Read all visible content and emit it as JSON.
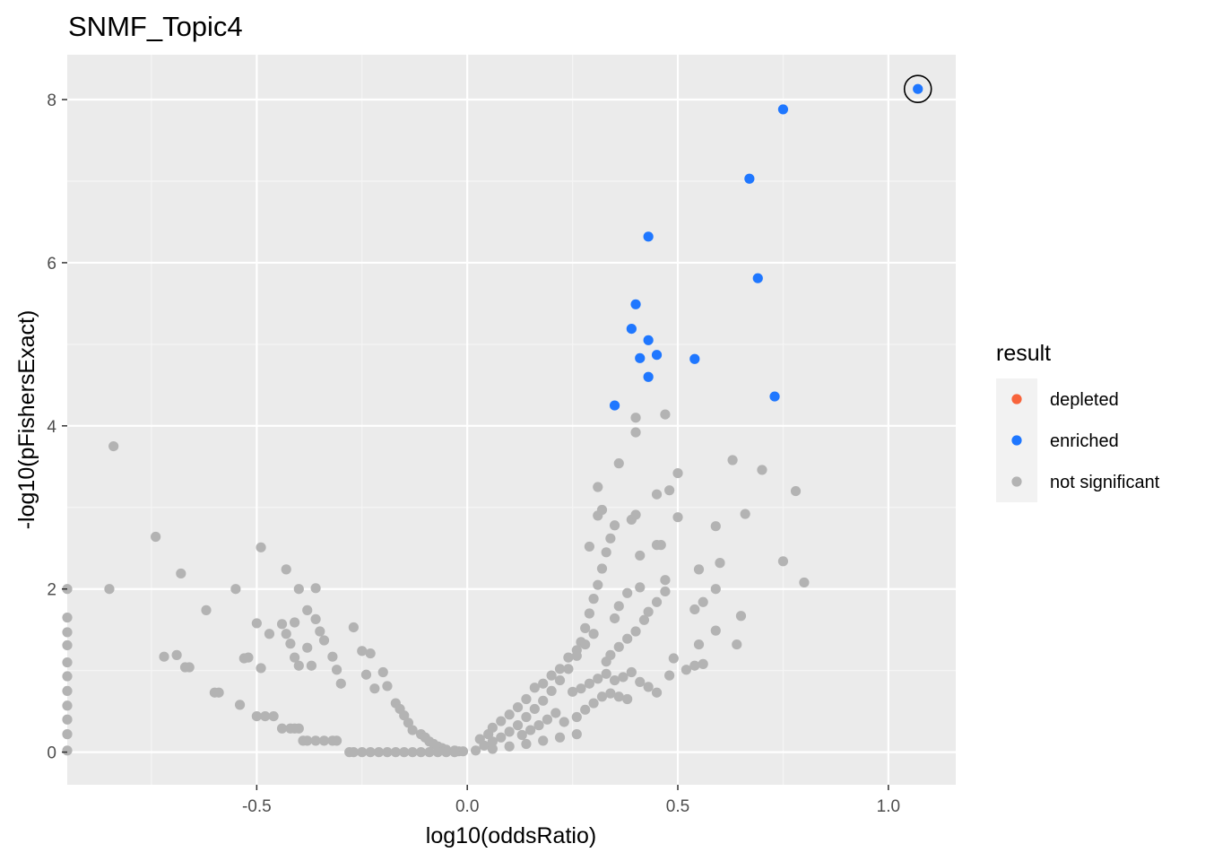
{
  "chart_data": {
    "type": "scatter",
    "title": "SNMF_Topic4",
    "xlabel": "log10(oddsRatio)",
    "ylabel": "-log10(pFishersExact)",
    "xlim": [
      -0.95,
      1.16
    ],
    "ylim": [
      -0.4,
      8.55
    ],
    "x_ticks": [
      -0.5,
      0.0,
      0.5,
      1.0
    ],
    "x_tick_labels": [
      "-0.5",
      "0.0",
      "0.5",
      "1.0"
    ],
    "y_ticks": [
      0,
      2,
      4,
      6,
      8
    ],
    "y_tick_labels": [
      "0",
      "2",
      "4",
      "6",
      "8"
    ],
    "grid": true,
    "legend": {
      "title": "result",
      "position": "right",
      "entries": [
        {
          "label": "depleted",
          "color": "#F8643C"
        },
        {
          "label": "enriched",
          "color": "#1F77FF"
        },
        {
          "label": "not significant",
          "color": "#B3B3B3"
        }
      ]
    },
    "highlighted_point": {
      "x": 1.07,
      "y": 8.13
    },
    "series": [
      {
        "name": "enriched",
        "color": "#1F77FF",
        "points": [
          [
            1.07,
            8.13
          ],
          [
            0.75,
            7.88
          ],
          [
            0.67,
            7.03
          ],
          [
            0.43,
            6.32
          ],
          [
            0.69,
            5.81
          ],
          [
            0.4,
            5.49
          ],
          [
            0.39,
            5.19
          ],
          [
            0.43,
            5.05
          ],
          [
            0.45,
            4.87
          ],
          [
            0.41,
            4.83
          ],
          [
            0.54,
            4.82
          ],
          [
            0.43,
            4.6
          ],
          [
            0.73,
            4.36
          ],
          [
            0.35,
            4.25
          ]
        ]
      },
      {
        "name": "not significant",
        "color": "#B3B3B3",
        "points": [
          [
            -0.84,
            3.75
          ],
          [
            -0.74,
            2.64
          ],
          [
            -0.68,
            2.19
          ],
          [
            -0.62,
            1.74
          ],
          [
            -0.55,
            2.0
          ],
          [
            -0.49,
            2.51
          ],
          [
            -0.43,
            2.24
          ],
          [
            -0.4,
            2.0
          ],
          [
            -0.36,
            2.01
          ],
          [
            -0.85,
            2.0
          ],
          [
            -0.72,
            1.17
          ],
          [
            -0.69,
            1.19
          ],
          [
            -0.67,
            1.04
          ],
          [
            -0.66,
            1.04
          ],
          [
            -0.6,
            0.73
          ],
          [
            -0.59,
            0.73
          ],
          [
            -0.54,
            0.58
          ],
          [
            -0.53,
            1.15
          ],
          [
            -0.52,
            1.16
          ],
          [
            -0.5,
            1.58
          ],
          [
            -0.49,
            1.03
          ],
          [
            -0.47,
            1.45
          ],
          [
            -0.44,
            1.57
          ],
          [
            -0.43,
            1.45
          ],
          [
            -0.42,
            1.33
          ],
          [
            -0.41,
            1.16
          ],
          [
            -0.41,
            1.59
          ],
          [
            -0.4,
            1.06
          ],
          [
            -0.38,
            1.74
          ],
          [
            -0.38,
            1.28
          ],
          [
            -0.37,
            1.06
          ],
          [
            -0.36,
            1.63
          ],
          [
            -0.35,
            1.48
          ],
          [
            -0.34,
            1.37
          ],
          [
            -0.32,
            1.17
          ],
          [
            -0.31,
            1.01
          ],
          [
            -0.3,
            0.84
          ],
          [
            -0.27,
            1.53
          ],
          [
            -0.25,
            1.24
          ],
          [
            -0.24,
            0.95
          ],
          [
            -0.23,
            1.21
          ],
          [
            -0.22,
            0.78
          ],
          [
            -0.2,
            0.98
          ],
          [
            -0.19,
            0.81
          ],
          [
            -0.17,
            0.6
          ],
          [
            -0.16,
            0.53
          ],
          [
            -0.15,
            0.45
          ],
          [
            -0.14,
            0.36
          ],
          [
            -0.13,
            0.27
          ],
          [
            -0.11,
            0.22
          ],
          [
            -0.1,
            0.18
          ],
          [
            -0.09,
            0.13
          ],
          [
            -0.08,
            0.1
          ],
          [
            -0.07,
            0.07
          ],
          [
            -0.06,
            0.05
          ],
          [
            -0.05,
            0.03
          ],
          [
            -0.03,
            0.02
          ],
          [
            -0.02,
            0.01
          ],
          [
            -0.01,
            0.01
          ],
          [
            -0.5,
            0.44
          ],
          [
            -0.48,
            0.44
          ],
          [
            -0.46,
            0.44
          ],
          [
            -0.44,
            0.29
          ],
          [
            -0.42,
            0.29
          ],
          [
            -0.41,
            0.29
          ],
          [
            -0.4,
            0.29
          ],
          [
            -0.39,
            0.14
          ],
          [
            -0.38,
            0.14
          ],
          [
            -0.36,
            0.14
          ],
          [
            -0.34,
            0.14
          ],
          [
            -0.32,
            0.14
          ],
          [
            -0.31,
            0.14
          ],
          [
            -0.28,
            0.0
          ],
          [
            -0.27,
            0.0
          ],
          [
            -0.25,
            0.0
          ],
          [
            -0.23,
            0.0
          ],
          [
            -0.21,
            0.0
          ],
          [
            -0.19,
            0.0
          ],
          [
            -0.17,
            0.0
          ],
          [
            -0.15,
            0.0
          ],
          [
            -0.13,
            0.0
          ],
          [
            -0.11,
            0.0
          ],
          [
            -0.09,
            0.0
          ],
          [
            -0.07,
            0.0
          ],
          [
            -0.05,
            0.0
          ],
          [
            -0.03,
            0.0
          ],
          [
            -0.95,
            2.0
          ],
          [
            -0.95,
            1.65
          ],
          [
            -0.95,
            1.47
          ],
          [
            -0.95,
            1.31
          ],
          [
            -0.95,
            1.1
          ],
          [
            -0.95,
            0.93
          ],
          [
            -0.95,
            0.75
          ],
          [
            -0.95,
            0.57
          ],
          [
            -0.95,
            0.4
          ],
          [
            -0.95,
            0.22
          ],
          [
            -0.95,
            0.02
          ],
          [
            0.02,
            0.02
          ],
          [
            0.04,
            0.08
          ],
          [
            0.06,
            0.13
          ],
          [
            0.08,
            0.18
          ],
          [
            0.1,
            0.25
          ],
          [
            0.12,
            0.33
          ],
          [
            0.14,
            0.43
          ],
          [
            0.16,
            0.53
          ],
          [
            0.18,
            0.63
          ],
          [
            0.2,
            0.75
          ],
          [
            0.22,
            0.88
          ],
          [
            0.24,
            1.02
          ],
          [
            0.26,
            1.18
          ],
          [
            0.27,
            1.35
          ],
          [
            0.28,
            1.52
          ],
          [
            0.29,
            1.7
          ],
          [
            0.3,
            1.88
          ],
          [
            0.31,
            2.05
          ],
          [
            0.32,
            2.25
          ],
          [
            0.33,
            2.45
          ],
          [
            0.34,
            2.62
          ],
          [
            0.35,
            2.78
          ],
          [
            0.29,
            2.52
          ],
          [
            0.31,
            2.9
          ],
          [
            0.32,
            2.97
          ],
          [
            0.31,
            3.25
          ],
          [
            0.36,
            3.54
          ],
          [
            0.4,
            3.92
          ],
          [
            0.4,
            4.1
          ],
          [
            0.47,
            4.14
          ],
          [
            0.39,
            2.85
          ],
          [
            0.4,
            2.91
          ],
          [
            0.45,
            3.16
          ],
          [
            0.48,
            3.21
          ],
          [
            0.5,
            3.42
          ],
          [
            0.45,
            2.54
          ],
          [
            0.46,
            2.54
          ],
          [
            0.41,
            2.41
          ],
          [
            0.5,
            2.88
          ],
          [
            0.63,
            3.58
          ],
          [
            0.7,
            3.46
          ],
          [
            0.78,
            3.2
          ],
          [
            0.59,
            2.77
          ],
          [
            0.66,
            2.92
          ],
          [
            0.75,
            2.34
          ],
          [
            0.8,
            2.08
          ],
          [
            0.6,
            2.32
          ],
          [
            0.55,
            2.24
          ],
          [
            0.59,
            2.0
          ],
          [
            0.56,
            1.84
          ],
          [
            0.54,
            1.75
          ],
          [
            0.65,
            1.67
          ],
          [
            0.59,
            1.49
          ],
          [
            0.64,
            1.32
          ],
          [
            0.55,
            1.32
          ],
          [
            0.56,
            1.08
          ],
          [
            0.54,
            1.06
          ],
          [
            0.47,
            2.11
          ],
          [
            0.47,
            1.97
          ],
          [
            0.45,
            1.84
          ],
          [
            0.43,
            1.72
          ],
          [
            0.42,
            1.62
          ],
          [
            0.4,
            1.48
          ],
          [
            0.38,
            1.39
          ],
          [
            0.36,
            1.29
          ],
          [
            0.34,
            1.19
          ],
          [
            0.33,
            1.11
          ],
          [
            0.41,
            2.02
          ],
          [
            0.38,
            1.95
          ],
          [
            0.36,
            1.79
          ],
          [
            0.35,
            1.64
          ],
          [
            0.3,
            1.45
          ],
          [
            0.28,
            1.32
          ],
          [
            0.26,
            1.25
          ],
          [
            0.24,
            1.16
          ],
          [
            0.22,
            1.02
          ],
          [
            0.2,
            0.94
          ],
          [
            0.18,
            0.84
          ],
          [
            0.16,
            0.79
          ],
          [
            0.14,
            0.65
          ],
          [
            0.12,
            0.55
          ],
          [
            0.1,
            0.46
          ],
          [
            0.08,
            0.38
          ],
          [
            0.06,
            0.3
          ],
          [
            0.05,
            0.22
          ],
          [
            0.03,
            0.16
          ],
          [
            0.25,
            0.74
          ],
          [
            0.27,
            0.78
          ],
          [
            0.29,
            0.84
          ],
          [
            0.31,
            0.9
          ],
          [
            0.33,
            0.96
          ],
          [
            0.35,
            0.88
          ],
          [
            0.37,
            0.92
          ],
          [
            0.39,
            0.98
          ],
          [
            0.41,
            0.86
          ],
          [
            0.43,
            0.8
          ],
          [
            0.45,
            0.73
          ],
          [
            0.48,
            0.94
          ],
          [
            0.49,
            1.15
          ],
          [
            0.52,
            1.01
          ],
          [
            0.21,
            0.48
          ],
          [
            0.19,
            0.4
          ],
          [
            0.17,
            0.33
          ],
          [
            0.15,
            0.27
          ],
          [
            0.13,
            0.21
          ],
          [
            0.23,
            0.37
          ],
          [
            0.26,
            0.43
          ],
          [
            0.28,
            0.52
          ],
          [
            0.3,
            0.6
          ],
          [
            0.32,
            0.68
          ],
          [
            0.34,
            0.72
          ],
          [
            0.36,
            0.68
          ],
          [
            0.38,
            0.65
          ],
          [
            0.26,
            0.22
          ],
          [
            0.22,
            0.18
          ],
          [
            0.18,
            0.14
          ],
          [
            0.14,
            0.1
          ],
          [
            0.1,
            0.07
          ],
          [
            0.06,
            0.04
          ]
        ]
      }
    ]
  }
}
